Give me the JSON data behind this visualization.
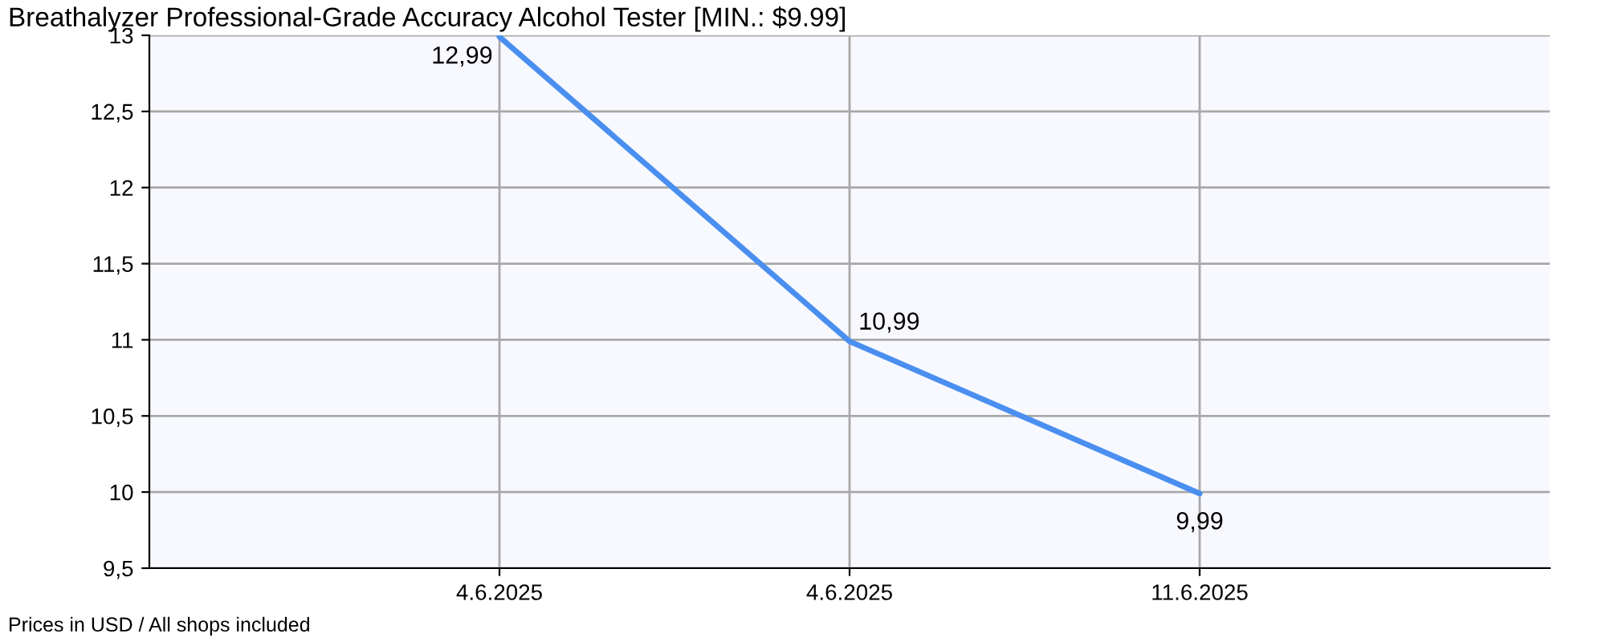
{
  "chart_data": {
    "type": "line",
    "title": "Breathalyzer Professional-Grade Accuracy Alcohol Tester [MIN.: $9.99]",
    "categories": [
      "4.6.2025",
      "4.6.2025",
      "11.6.2025"
    ],
    "series": [
      {
        "color": "#4a8ff0",
        "values": [
          12.99,
          10.99,
          9.99
        ],
        "value_labels": [
          "12,99",
          "10,99",
          "9,99"
        ]
      }
    ],
    "ylim": [
      9.5,
      13
    ],
    "yticks": [
      {
        "value": 9.5,
        "label": "9,5"
      },
      10,
      {
        "value": 10.5,
        "label": "10,5"
      },
      11,
      {
        "value": 11.5,
        "label": "11,5"
      },
      12,
      {
        "value": 12.5,
        "label": "12,5"
      },
      13
    ],
    "grid": true,
    "marker": "none",
    "line_style": "solid",
    "annotations": [
      "Prices in USD / All shops included"
    ]
  }
}
